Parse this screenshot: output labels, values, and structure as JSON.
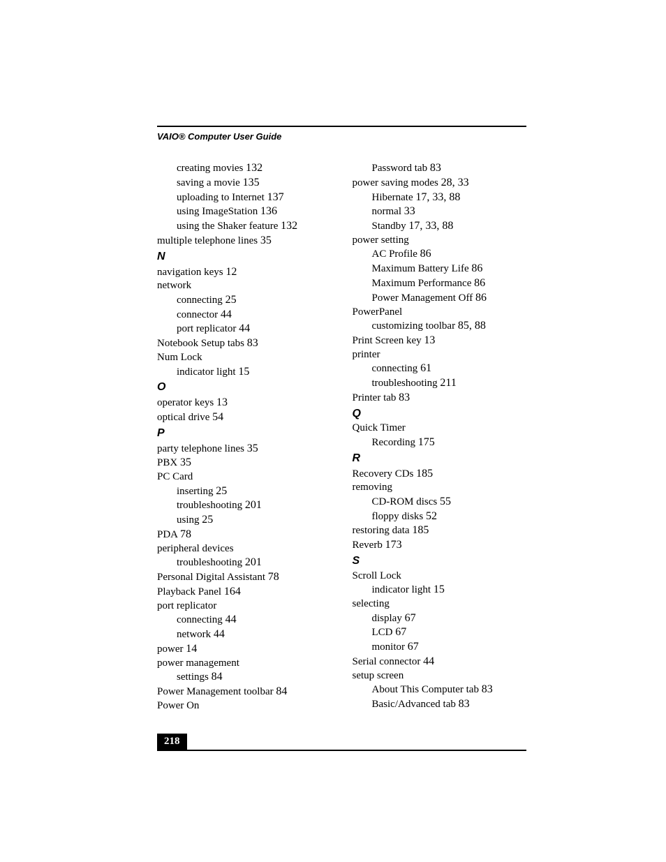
{
  "header": "VAIO® Computer User Guide",
  "page_number": "218",
  "left_col": [
    {
      "type": "entry",
      "indent": 1,
      "term": "creating movies",
      "pages": "132"
    },
    {
      "type": "entry",
      "indent": 1,
      "term": "saving a movie",
      "pages": "135"
    },
    {
      "type": "entry",
      "indent": 1,
      "term": "uploading to Internet",
      "pages": "137"
    },
    {
      "type": "entry",
      "indent": 1,
      "term": "using ImageStation",
      "pages": "136"
    },
    {
      "type": "entry",
      "indent": 1,
      "term": "using the Shaker feature",
      "pages": "132"
    },
    {
      "type": "entry",
      "indent": 0,
      "term": "multiple telephone lines",
      "pages": "35"
    },
    {
      "type": "letter",
      "text": "N"
    },
    {
      "type": "entry",
      "indent": 0,
      "term": "navigation keys",
      "pages": "12"
    },
    {
      "type": "entry",
      "indent": 0,
      "term": "network",
      "pages": ""
    },
    {
      "type": "entry",
      "indent": 1,
      "term": "connecting",
      "pages": "25"
    },
    {
      "type": "entry",
      "indent": 1,
      "term": "connector",
      "pages": "44"
    },
    {
      "type": "entry",
      "indent": 1,
      "term": "port replicator",
      "pages": "44"
    },
    {
      "type": "entry",
      "indent": 0,
      "term": "Notebook Setup tabs",
      "pages": "83"
    },
    {
      "type": "entry",
      "indent": 0,
      "term": "Num Lock",
      "pages": ""
    },
    {
      "type": "entry",
      "indent": 1,
      "term": "indicator light",
      "pages": "15"
    },
    {
      "type": "letter",
      "text": "O"
    },
    {
      "type": "entry",
      "indent": 0,
      "term": "operator keys",
      "pages": "13"
    },
    {
      "type": "entry",
      "indent": 0,
      "term": "optical drive",
      "pages": "54"
    },
    {
      "type": "letter",
      "text": "P"
    },
    {
      "type": "entry",
      "indent": 0,
      "term": "party telephone lines",
      "pages": "35"
    },
    {
      "type": "entry",
      "indent": 0,
      "term": "PBX",
      "pages": "35"
    },
    {
      "type": "entry",
      "indent": 0,
      "term": "PC Card",
      "pages": ""
    },
    {
      "type": "entry",
      "indent": 1,
      "term": "inserting",
      "pages": "25"
    },
    {
      "type": "entry",
      "indent": 1,
      "term": "troubleshooting",
      "pages": "201"
    },
    {
      "type": "entry",
      "indent": 1,
      "term": "using",
      "pages": "25"
    },
    {
      "type": "entry",
      "indent": 0,
      "term": "PDA",
      "pages": "78"
    },
    {
      "type": "entry",
      "indent": 0,
      "term": "peripheral devices",
      "pages": ""
    },
    {
      "type": "entry",
      "indent": 1,
      "term": "troubleshooting",
      "pages": "201"
    },
    {
      "type": "entry",
      "indent": 0,
      "term": "Personal Digital Assistant",
      "pages": "78"
    },
    {
      "type": "entry",
      "indent": 0,
      "term": "Playback Panel",
      "pages": "164"
    },
    {
      "type": "entry",
      "indent": 0,
      "term": "port replicator",
      "pages": ""
    },
    {
      "type": "entry",
      "indent": 1,
      "term": "connecting",
      "pages": "44"
    },
    {
      "type": "entry",
      "indent": 1,
      "term": "network",
      "pages": "44"
    },
    {
      "type": "entry",
      "indent": 0,
      "term": "power",
      "pages": "14"
    },
    {
      "type": "entry",
      "indent": 0,
      "term": "power management",
      "pages": ""
    },
    {
      "type": "entry",
      "indent": 1,
      "term": "settings",
      "pages": "84"
    },
    {
      "type": "entry",
      "indent": 0,
      "term": "Power Management toolbar",
      "pages": "84"
    },
    {
      "type": "entry",
      "indent": 0,
      "term": "Power On",
      "pages": ""
    }
  ],
  "right_col": [
    {
      "type": "entry",
      "indent": 1,
      "term": "Password tab",
      "pages": "83"
    },
    {
      "type": "entry",
      "indent": 0,
      "term": "power saving modes",
      "pages": "28, 33"
    },
    {
      "type": "entry",
      "indent": 1,
      "term": "Hibernate",
      "pages": "17, 33, 88"
    },
    {
      "type": "entry",
      "indent": 1,
      "term": "normal",
      "pages": "33"
    },
    {
      "type": "entry",
      "indent": 1,
      "term": "Standby",
      "pages": "17, 33, 88"
    },
    {
      "type": "entry",
      "indent": 0,
      "term": "power setting",
      "pages": ""
    },
    {
      "type": "entry",
      "indent": 1,
      "term": "AC Profile",
      "pages": "86"
    },
    {
      "type": "entry",
      "indent": 1,
      "term": "Maximum Battery Life",
      "pages": "86"
    },
    {
      "type": "entry",
      "indent": 1,
      "term": "Maximum Performance",
      "pages": "86"
    },
    {
      "type": "entry",
      "indent": 1,
      "term": "Power Management Off",
      "pages": "86"
    },
    {
      "type": "entry",
      "indent": 0,
      "term": "PowerPanel",
      "pages": ""
    },
    {
      "type": "entry",
      "indent": 1,
      "term": "customizing toolbar",
      "pages": "85, 88"
    },
    {
      "type": "entry",
      "indent": 0,
      "term": "Print Screen key",
      "pages": "13"
    },
    {
      "type": "entry",
      "indent": 0,
      "term": "printer",
      "pages": ""
    },
    {
      "type": "entry",
      "indent": 1,
      "term": "connecting",
      "pages": "61"
    },
    {
      "type": "entry",
      "indent": 1,
      "term": "troubleshooting",
      "pages": "211"
    },
    {
      "type": "entry",
      "indent": 0,
      "term": "Printer tab",
      "pages": "83"
    },
    {
      "type": "letter",
      "text": "Q"
    },
    {
      "type": "entry",
      "indent": 0,
      "term": "Quick Timer",
      "pages": ""
    },
    {
      "type": "entry",
      "indent": 1,
      "term": "Recording",
      "pages": "175"
    },
    {
      "type": "letter",
      "text": "R"
    },
    {
      "type": "entry",
      "indent": 0,
      "term": "Recovery CDs",
      "pages": "185"
    },
    {
      "type": "entry",
      "indent": 0,
      "term": "removing",
      "pages": ""
    },
    {
      "type": "entry",
      "indent": 1,
      "term": "CD-ROM discs",
      "pages": "55"
    },
    {
      "type": "entry",
      "indent": 1,
      "term": "floppy disks",
      "pages": "52"
    },
    {
      "type": "entry",
      "indent": 0,
      "term": "restoring data",
      "pages": "185"
    },
    {
      "type": "entry",
      "indent": 0,
      "term": "Reverb",
      "pages": "173"
    },
    {
      "type": "letter",
      "text": "S"
    },
    {
      "type": "entry",
      "indent": 0,
      "term": "Scroll Lock",
      "pages": ""
    },
    {
      "type": "entry",
      "indent": 1,
      "term": "indicator light",
      "pages": "15"
    },
    {
      "type": "entry",
      "indent": 0,
      "term": "selecting",
      "pages": ""
    },
    {
      "type": "entry",
      "indent": 1,
      "term": "display",
      "pages": "67"
    },
    {
      "type": "entry",
      "indent": 1,
      "term": "LCD",
      "pages": "67"
    },
    {
      "type": "entry",
      "indent": 1,
      "term": "monitor",
      "pages": "67"
    },
    {
      "type": "entry",
      "indent": 0,
      "term": "Serial connector",
      "pages": "44"
    },
    {
      "type": "entry",
      "indent": 0,
      "term": "setup screen",
      "pages": ""
    },
    {
      "type": "entry",
      "indent": 1,
      "term": "About This Computer tab",
      "pages": "83"
    },
    {
      "type": "entry",
      "indent": 1,
      "term": "Basic/Advanced tab",
      "pages": "83"
    }
  ]
}
